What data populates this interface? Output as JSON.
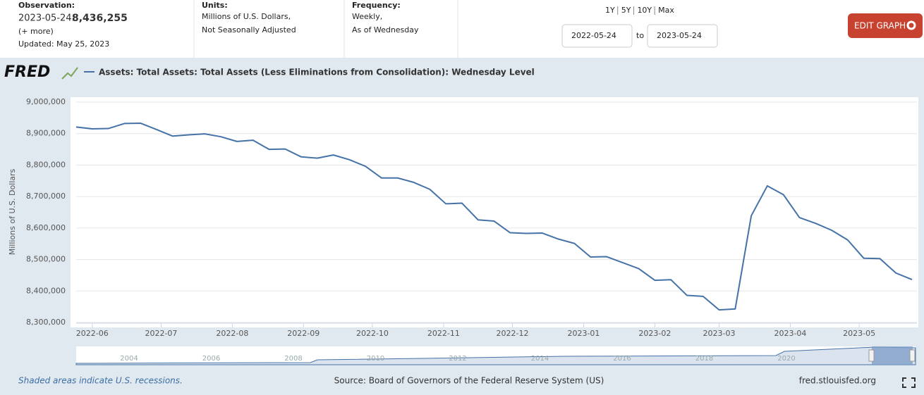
{
  "header": {
    "observation_label": "Observation:",
    "observation_date": "2023-05-24:",
    "observation_value": "8,436,255",
    "more": "(+ more)",
    "updated": "Updated: May 25, 2023",
    "units_label": "Units:",
    "units_line1": "Millions of U.S. Dollars,",
    "units_line2": "Not Seasonally Adjusted",
    "frequency_label": "Frequency:",
    "frequency_line1": "Weekly,",
    "frequency_line2": "As of Wednesday",
    "ranges": [
      "1Y",
      "5Y",
      "10Y",
      "Max"
    ],
    "start_date": "2022-05-24",
    "to": "to",
    "end_date": "2023-05-24",
    "edit_button": "EDIT GRAPH"
  },
  "logo": "FRED",
  "chart_data": {
    "type": "line",
    "title": "Assets: Total Assets: Total Assets (Less Eliminations from Consolidation): Wednesday Level",
    "y_label": "Millions of U.S. Dollars",
    "x": [
      "2022-05-25",
      "2022-06-01",
      "2022-06-08",
      "2022-06-15",
      "2022-06-22",
      "2022-06-29",
      "2022-07-06",
      "2022-07-13",
      "2022-07-20",
      "2022-07-27",
      "2022-08-03",
      "2022-08-10",
      "2022-08-17",
      "2022-08-24",
      "2022-08-31",
      "2022-09-07",
      "2022-09-14",
      "2022-09-21",
      "2022-09-28",
      "2022-10-05",
      "2022-10-12",
      "2022-10-19",
      "2022-10-26",
      "2022-11-02",
      "2022-11-09",
      "2022-11-16",
      "2022-11-23",
      "2022-11-30",
      "2022-12-07",
      "2022-12-14",
      "2022-12-21",
      "2022-12-28",
      "2023-01-04",
      "2023-01-11",
      "2023-01-18",
      "2023-01-25",
      "2023-02-01",
      "2023-02-08",
      "2023-02-15",
      "2023-02-22",
      "2023-03-01",
      "2023-03-08",
      "2023-03-15",
      "2023-03-22",
      "2023-03-29",
      "2023-04-05",
      "2023-04-12",
      "2023-04-19",
      "2023-04-26",
      "2023-05-03",
      "2023-05-10",
      "2023-05-17",
      "2023-05-24"
    ],
    "series": [
      {
        "name": "Assets: Total Assets: Total Assets (Less Eliminations from Consolidation): Wednesday Level",
        "color": "#4572a7",
        "values": [
          8921000,
          8915000,
          8916000,
          8932000,
          8933000,
          8913000,
          8892000,
          8896000,
          8899000,
          8890000,
          8875000,
          8879000,
          8850000,
          8851000,
          8826000,
          8822000,
          8832000,
          8817000,
          8796000,
          8759000,
          8759000,
          8745000,
          8723000,
          8677000,
          8679000,
          8626000,
          8622000,
          8585000,
          8583000,
          8584000,
          8565000,
          8551000,
          8508000,
          8509000,
          8490000,
          8471000,
          8434000,
          8436000,
          8386000,
          8383000,
          8340000,
          8343000,
          8639000,
          8734000,
          8706000,
          8633000,
          8615000,
          8593000,
          8562000,
          8504000,
          8503000,
          8457000,
          8436255
        ]
      }
    ],
    "xlim": [
      "2022-05-25",
      "2023-05-24"
    ],
    "xticks": [
      {
        "value": "2022-06-01",
        "label": "2022-06"
      },
      {
        "value": "2022-07-01",
        "label": "2022-07"
      },
      {
        "value": "2022-08-01",
        "label": "2022-08"
      },
      {
        "value": "2022-09-01",
        "label": "2022-09"
      },
      {
        "value": "2022-10-01",
        "label": "2022-10"
      },
      {
        "value": "2022-11-01",
        "label": "2022-11"
      },
      {
        "value": "2022-12-01",
        "label": "2022-12"
      },
      {
        "value": "2023-01-01",
        "label": "2023-01"
      },
      {
        "value": "2023-02-01",
        "label": "2023-02"
      },
      {
        "value": "2023-03-01",
        "label": "2023-03"
      },
      {
        "value": "2023-04-01",
        "label": "2023-04"
      },
      {
        "value": "2023-05-01",
        "label": "2023-05"
      }
    ],
    "ylim": [
      8300000,
      9000000
    ],
    "yticks": [
      {
        "value": 8300000,
        "label": "8,300,000"
      },
      {
        "value": 8400000,
        "label": "8,400,000"
      },
      {
        "value": 8500000,
        "label": "8,500,000"
      },
      {
        "value": 8600000,
        "label": "8,600,000"
      },
      {
        "value": 8700000,
        "label": "8,700,000"
      },
      {
        "value": 8800000,
        "label": "8,800,000"
      },
      {
        "value": 8900000,
        "label": "8,900,000"
      },
      {
        "value": 9000000,
        "label": "9,000,000"
      }
    ],
    "grid": true
  },
  "navigator_labels": [
    "2004",
    "2006",
    "2008",
    "2010",
    "2012",
    "2014",
    "2016",
    "2018",
    "2020"
  ],
  "footer": {
    "recessions": "Shaded areas indicate U.S. recessions.",
    "source": "Source: Board of Governors of the Federal Reserve System (US)",
    "site": "fred.stlouisfed.org"
  }
}
